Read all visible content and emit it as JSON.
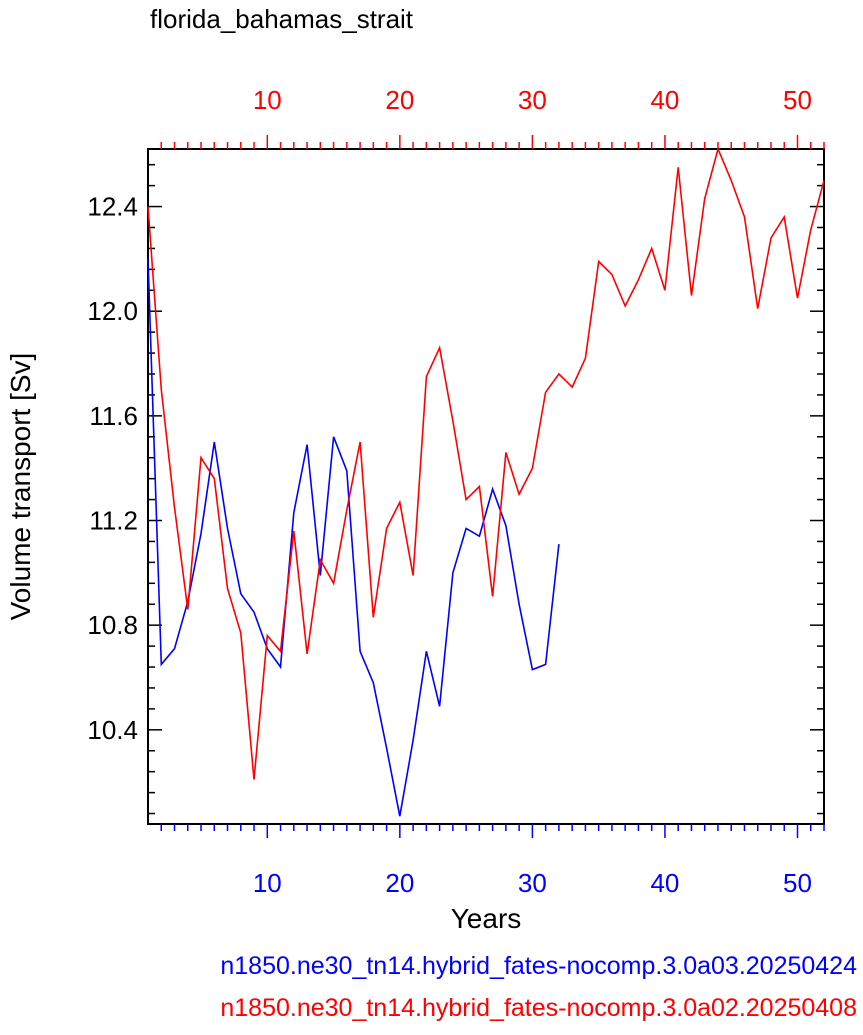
{
  "chart_data": {
    "type": "line",
    "title": "florida_bahamas_strait",
    "xlabel": "Years",
    "ylabel": "Volume transport [Sv]",
    "xlim": [
      1,
      52
    ],
    "ylim": [
      10.04,
      12.62
    ],
    "y_ticks": [
      "10.4",
      "10.8",
      "11.2",
      "11.6",
      "12.0",
      "12.4"
    ],
    "x_ticks": [
      "10",
      "20",
      "30",
      "40",
      "50"
    ],
    "grid": false,
    "colors": {
      "blue": "#0000ff",
      "red": "#ff0000",
      "axis": "#000000"
    },
    "series": [
      {
        "name": "n1850.ne30_tn14.hybrid_fates-nocomp.3.0a03.20250424",
        "color": "#0000ff",
        "axis": "bottom",
        "x": [
          1,
          2,
          3,
          4,
          5,
          6,
          7,
          8,
          9,
          10,
          11,
          12,
          13,
          14,
          15,
          16,
          17,
          18,
          19,
          20,
          21,
          22,
          23,
          24,
          25,
          26,
          27,
          28,
          29,
          30,
          31,
          32
        ],
        "y": [
          12.2,
          10.65,
          10.71,
          10.89,
          11.15,
          11.5,
          11.17,
          10.92,
          10.85,
          10.71,
          10.64,
          11.23,
          11.49,
          10.99,
          11.52,
          11.39,
          10.7,
          10.58,
          10.33,
          10.07,
          10.36,
          10.7,
          10.49,
          11.0,
          11.17,
          11.14,
          11.32,
          11.18,
          10.88,
          10.63,
          10.65,
          11.11
        ]
      },
      {
        "name": "n1850.ne30_tn14.hybrid_fates-nocomp.3.0a02.20250408",
        "color": "#ff0000",
        "axis": "top",
        "x": [
          1,
          2,
          3,
          4,
          5,
          6,
          7,
          8,
          9,
          10,
          11,
          12,
          13,
          14,
          15,
          16,
          17,
          18,
          19,
          20,
          21,
          22,
          23,
          24,
          25,
          26,
          27,
          28,
          29,
          30,
          31,
          32,
          33,
          34,
          35,
          36,
          37,
          38,
          39,
          40,
          41,
          42,
          43,
          44,
          45,
          46,
          47,
          48,
          49,
          50,
          51,
          52
        ],
        "y": [
          12.4,
          11.7,
          11.25,
          10.86,
          11.44,
          11.36,
          10.94,
          10.77,
          10.21,
          10.76,
          10.7,
          11.16,
          10.69,
          11.05,
          10.96,
          11.24,
          11.5,
          10.83,
          11.17,
          11.27,
          10.99,
          11.75,
          11.86,
          11.58,
          11.28,
          11.33,
          10.91,
          11.46,
          11.3,
          11.4,
          11.69,
          11.76,
          11.71,
          11.82,
          12.19,
          12.14,
          12.02,
          12.12,
          12.24,
          12.08,
          12.55,
          12.06,
          12.43,
          12.62,
          12.5,
          12.36,
          12.01,
          12.28,
          12.36,
          12.05,
          12.31,
          12.5
        ]
      }
    ]
  }
}
